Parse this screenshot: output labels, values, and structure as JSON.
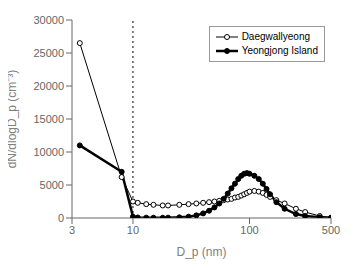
{
  "chart_data": {
    "type": "line",
    "title": "",
    "xlabel": "D_p (nm)",
    "ylabel": "dN/dlogD_p  (cm⁻³)",
    "log": "x",
    "grid": false,
    "legend": "upper right",
    "xlim": [
      3,
      500
    ],
    "ylim": [
      0,
      30000
    ],
    "xticks": [
      3,
      10,
      100,
      500
    ],
    "yticks": [
      0,
      5000,
      10000,
      15000,
      20000,
      25000,
      30000
    ],
    "vline_x": 10,
    "x": [
      3.5,
      8,
      10,
      11,
      13,
      15,
      18,
      20,
      25,
      30,
      35,
      40,
      45,
      50,
      55,
      60,
      65,
      70,
      75,
      80,
      85,
      90,
      95,
      100,
      110,
      120,
      130,
      140,
      150,
      170,
      200,
      250,
      300,
      400,
      500
    ],
    "series": [
      {
        "name": "Daegwallyeong",
        "color": "#000000",
        "marker": "open_circle",
        "line_style": "solid",
        "values": [
          26500,
          6200,
          2500,
          2300,
          2100,
          2000,
          1900,
          1900,
          2000,
          2100,
          2200,
          2300,
          2400,
          2500,
          2600,
          2700,
          2800,
          2900,
          3100,
          3200,
          3400,
          3600,
          3800,
          4000,
          4100,
          4000,
          3800,
          3500,
          3200,
          2700,
          2200,
          1400,
          900,
          300,
          50
        ]
      },
      {
        "name": "Yeongjong Island",
        "color": "#000000",
        "marker": "circle",
        "line_style": "solid",
        "values": [
          11000,
          7000,
          200,
          80,
          50,
          40,
          30,
          50,
          100,
          200,
          400,
          700,
          1100,
          1600,
          2200,
          2900,
          3700,
          4500,
          5200,
          5900,
          6400,
          6700,
          6800,
          6700,
          6400,
          5900,
          5200,
          4400,
          3600,
          2400,
          1400,
          600,
          300,
          100,
          20
        ]
      }
    ]
  }
}
